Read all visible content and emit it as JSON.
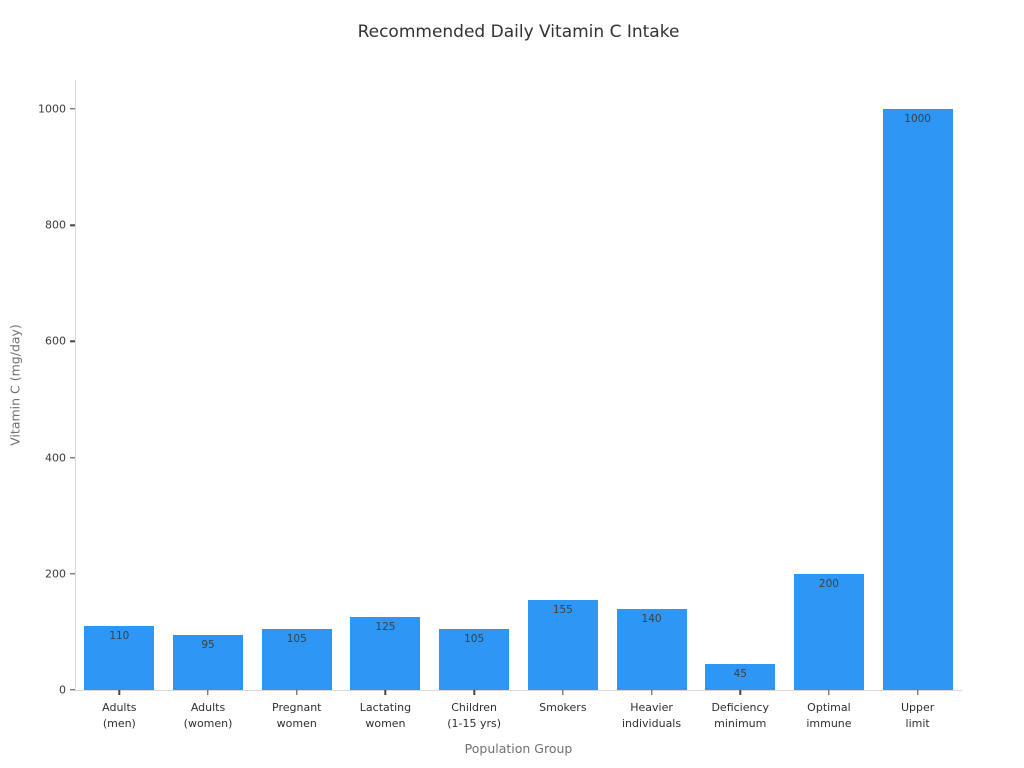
{
  "chart_data": {
    "type": "bar",
    "title": "Recommended Daily Vitamin C Intake",
    "xlabel": "Population Group",
    "ylabel": "Vitamin C (mg/day)",
    "categories": [
      "Adults (men)",
      "Adults (women)",
      "Pregnant women",
      "Lactating women",
      "Children (1-15 yrs)",
      "Smokers",
      "Heavier individuals",
      "Deficiency minimum",
      "Optimal immune",
      "Upper limit"
    ],
    "tick_label_lines": [
      [
        "Adults",
        "(men)"
      ],
      [
        "Adults",
        "(women)"
      ],
      [
        "Pregnant",
        "women"
      ],
      [
        "Lactating",
        "women"
      ],
      [
        "Children",
        "(1-15 yrs)"
      ],
      [
        "Smokers"
      ],
      [
        "Heavier",
        "individuals"
      ],
      [
        "Deficiency",
        "minimum"
      ],
      [
        "Optimal",
        "immune"
      ],
      [
        "Upper",
        "limit"
      ]
    ],
    "values": [
      110,
      95,
      105,
      125,
      105,
      155,
      140,
      45,
      200,
      1000
    ],
    "bar_value_labels": [
      "110",
      "95",
      "105",
      "125",
      "105",
      "155",
      "140",
      "45",
      "200",
      "1000"
    ],
    "yticks": [
      0,
      200,
      400,
      600,
      800,
      1000
    ],
    "ylim": [
      0,
      1050
    ],
    "grid": false,
    "legend": null,
    "colors": {
      "bar": "#2E96F5",
      "title": "#323232",
      "axis_title": "#707070",
      "tick_label": "#3b3b3b",
      "value_label": "#3f3f3f",
      "spine": "#d9d9d9",
      "tick_mark": "#454545",
      "background": "#ffffff"
    }
  }
}
